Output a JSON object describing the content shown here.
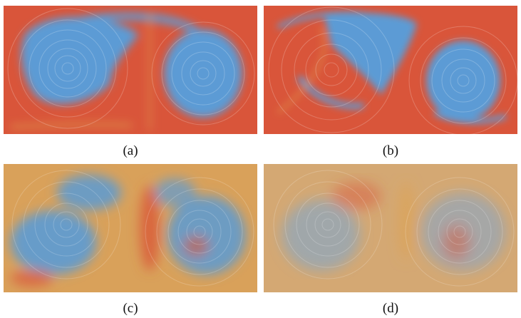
{
  "figure": {
    "panels": [
      {
        "id": "a",
        "caption": "(a)",
        "style": "red-dominant"
      },
      {
        "id": "b",
        "caption": "(b)",
        "style": "red-dominant"
      },
      {
        "id": "c",
        "caption": "(c)",
        "style": "mixed"
      },
      {
        "id": "d",
        "caption": "(d)",
        "style": "mixed-faint"
      }
    ],
    "colors": {
      "red": "#d9553a",
      "blue": "#5b9bd5",
      "orange": "#e0a24d",
      "paper": "#ffffff"
    }
  }
}
